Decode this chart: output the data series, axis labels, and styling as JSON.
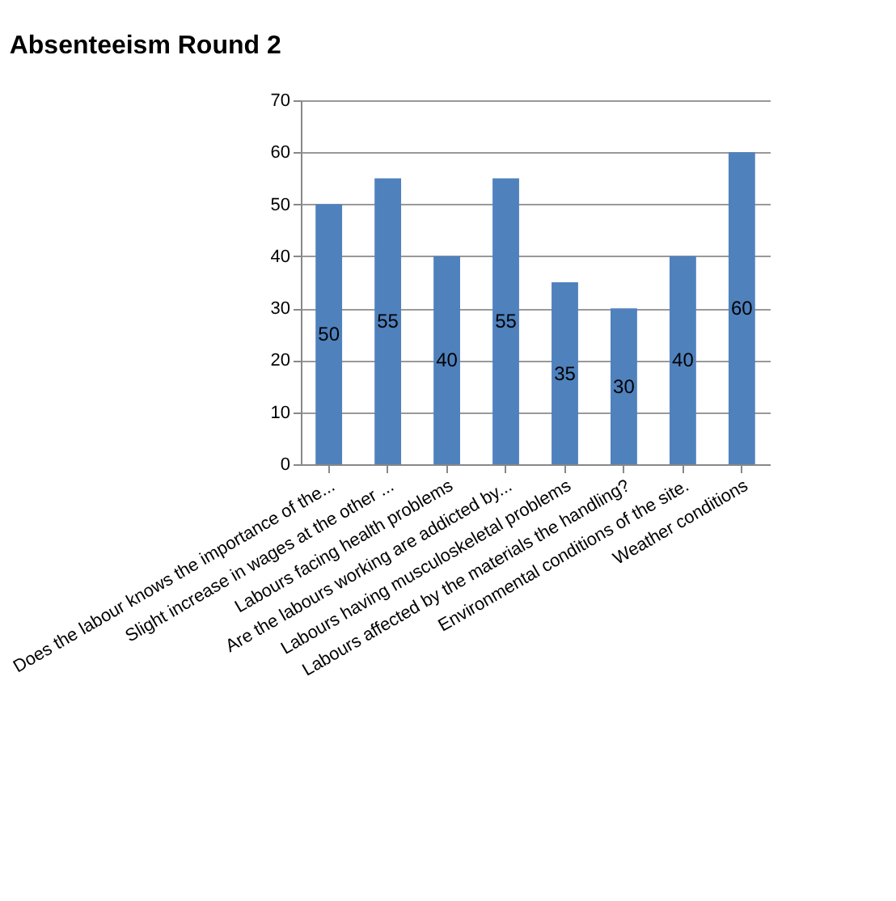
{
  "chart_data": {
    "type": "bar",
    "title": "Absenteeism Round 2",
    "categories": [
      "Does the labour knows the importance of the...",
      "Slight increase in wages at the other ...",
      "Labours facing health problems",
      "Are the labours working  are addicted by...",
      "Labours having musculoskeletal problems",
      "Labours affected by the materials the handling?",
      "Environmental conditions of the site.",
      "Weather conditions"
    ],
    "values": [
      50,
      55,
      40,
      55,
      35,
      30,
      40,
      60
    ],
    "color": "#4f81bd",
    "ylim": [
      0,
      70
    ],
    "yticks": [
      0,
      10,
      20,
      30,
      40,
      50,
      60,
      70
    ],
    "grid": "y",
    "data_labels": true
  }
}
